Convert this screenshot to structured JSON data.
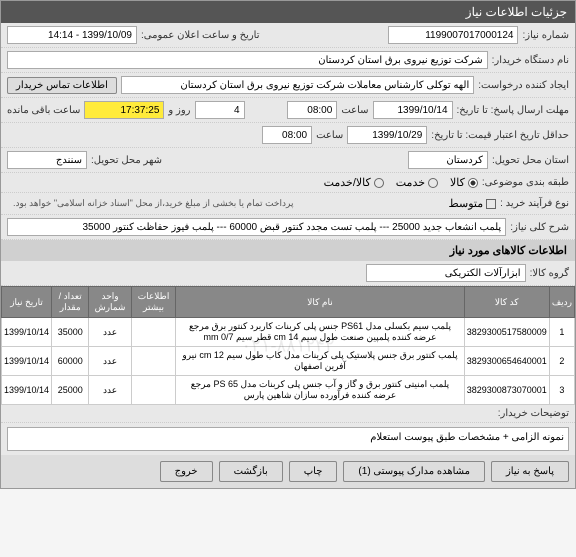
{
  "header": "جزئیات اطلاعات نیاز",
  "rows": {
    "req_no_label": "شماره نیاز:",
    "req_no": "1199007017000124",
    "announce_label": "تاریخ و ساعت اعلان عمومی:",
    "announce_val": "1399/10/09 - 14:14",
    "buyer_org_label": "نام دستگاه خریدار:",
    "buyer_org": "شرکت توزیع نیروی برق استان کردستان",
    "creator_label": "ایجاد کننده درخواست:",
    "creator": "الهه توکلی کارشناس معاملات شرکت توزیع نیروی برق استان کردستان",
    "contact_btn": "اطلاعات تماس خریدار",
    "deadline_send_label": "مهلت ارسال پاسخ: تا تاریخ:",
    "deadline_date1": "1399/10/14",
    "time_label": "ساعت",
    "deadline_time1": "08:00",
    "days_label": "روز و",
    "days_val": "4",
    "countdown": "17:37:25",
    "remaining": "ساعت باقی مانده",
    "validity_label": "حداقل تاریخ اعتبار قیمت: تا تاریخ:",
    "validity_date": "1399/10/29",
    "validity_time": "08:00",
    "delivery_province_label": "استان محل تحویل:",
    "delivery_province": "کردستان",
    "delivery_city_label": "شهر محل تحویل:",
    "delivery_city": "سنندج",
    "budget_label": "طبقه بندی موضوعی:",
    "budget_goods": "کالا",
    "budget_service": "خدمت",
    "budget_cash": "کالا/خدمت",
    "process_label": "نوع فرآیند خرید :",
    "process_medium": "متوسط",
    "process_desc": "پرداخت تمام یا بخشی از مبلغ خرید،از محل \"اسناد خزانه اسلامی\" خواهد بود.",
    "general_title_label": "شرح کلی نیاز:",
    "general_title": "پلمب انشعاب جدید 25000 --- پلمب تست مجدد کنتور قبض 60000 --- پلمب فیوز حفاظت کنتور 35000"
  },
  "section2": "اطلاعات کالاهای مورد نیاز",
  "goods_group_label": "گروه کالا:",
  "goods_group": "ابزارآلات الکتریکی",
  "table": {
    "headers": [
      "ردیف",
      "کد کالا",
      "نام کالا",
      "اطلاعات بیشتر",
      "واحد شمارش",
      "تعداد / مقدار",
      "تاریخ نیاز"
    ],
    "rows": [
      {
        "idx": "1",
        "code": "3829300517580009",
        "name": "پلمب سیم بکسلی مدل PS61 جنس پلی کربنات کاربرد کنتور برق مرجع عرضه کننده پلمپین صنعت طول سیم cm 14 قطر سیم mm 0/7",
        "info": "",
        "unit": "عدد",
        "qty": "35000",
        "date": "1399/10/14"
      },
      {
        "idx": "2",
        "code": "3829300654640001",
        "name": "پلمب کنتور برق جنس پلاستیک پلی کربنات مدل کاب طول سیم cm 12 نیرو آفرین اصفهان",
        "info": "",
        "unit": "عدد",
        "qty": "60000",
        "date": "1399/10/14"
      },
      {
        "idx": "3",
        "code": "3829300873070001",
        "name": "پلمب امنیتی کنتور برق و گاز و آب جنس پلی کربنات مدل PS 65 مرجع عرضه کننده فرآورده سازان شاهین پارس",
        "info": "",
        "unit": "عدد",
        "qty": "25000",
        "date": "1399/10/14"
      }
    ]
  },
  "buyer_notes_label": "توضیحات خریدار:",
  "buyer_notes": "نمونه الزامی + مشخصات طبق پیوست استعلام",
  "footer": {
    "reply": "پاسخ به نیاز",
    "attachments": "مشاهده مدارک پیوستی (1)",
    "print": "چاپ",
    "back": "بازگشت",
    "exit": "خروج"
  },
  "watermark": "۰۲۱-۸۸۱۲۴۲"
}
